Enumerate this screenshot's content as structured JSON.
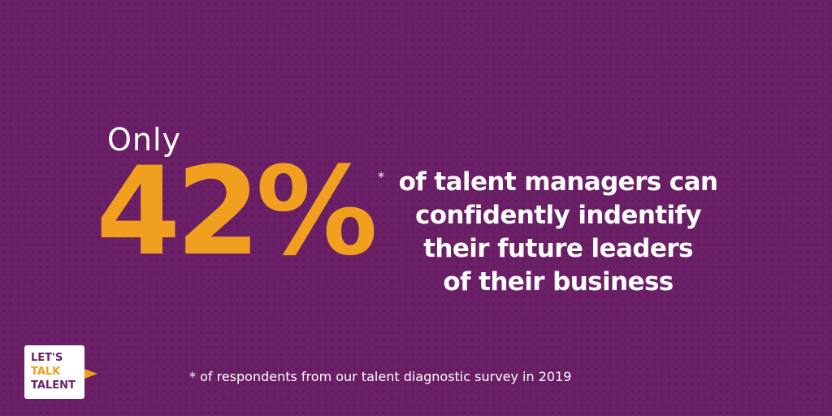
{
  "colors": {
    "background": "#6b1f66",
    "accent": "#f0a01e",
    "text": "#ffffff"
  },
  "headline": {
    "prefix": "Only",
    "stat": "42%",
    "asterisk": "*",
    "lines": [
      "of talent managers can",
      "confidently indentify",
      "their future leaders",
      "of their business"
    ]
  },
  "footnote": "* of respondents from our talent diagnostic survey in 2019",
  "logo": {
    "lines": [
      "LET'S",
      "TALK",
      "TALENT"
    ],
    "icon": "play-arrow-icon"
  }
}
